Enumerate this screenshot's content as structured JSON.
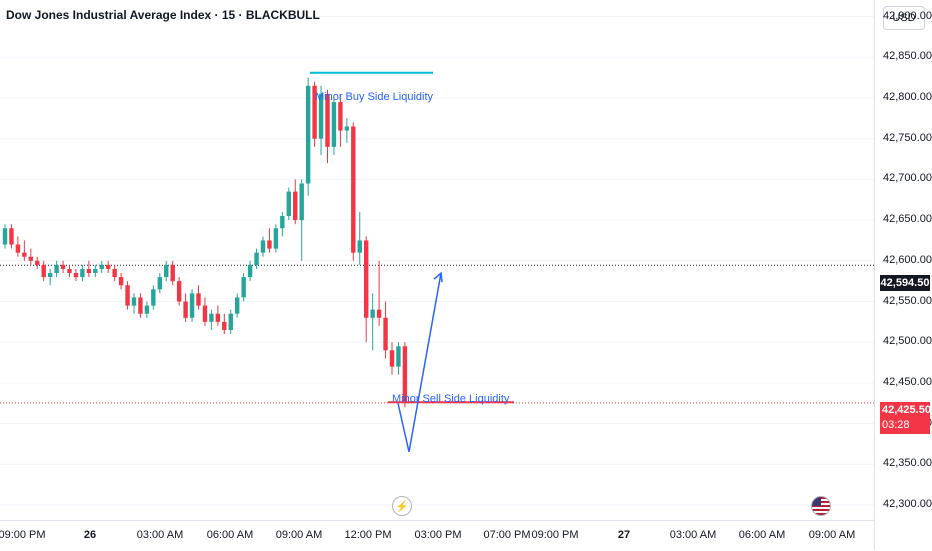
{
  "header": {
    "title": "Dow Jones Industrial Average Index · 15 · BLACKBULL"
  },
  "price_axis": {
    "currency": "USD",
    "ticks": [
      "42,900.00",
      "42,850.00",
      "42,800.00",
      "42,750.00",
      "42,700.00",
      "42,650.00",
      "42,600.00",
      "42,550.00",
      "42,500.00",
      "42,450.00",
      "42,400.00",
      "42,350.00",
      "42,300.00"
    ],
    "current_price_tag": "42,594.50",
    "last_price_tag": "42,425.50",
    "countdown": "03:28"
  },
  "time_axis": {
    "labels": [
      {
        "text": "09:00 PM",
        "bold": false
      },
      {
        "text": "26",
        "bold": true
      },
      {
        "text": "03:00 AM",
        "bold": false
      },
      {
        "text": "06:00 AM",
        "bold": false
      },
      {
        "text": "09:00 AM",
        "bold": false
      },
      {
        "text": "12:00 PM",
        "bold": false
      },
      {
        "text": "03:00 PM",
        "bold": false
      },
      {
        "text": "07:00 PM",
        "bold": false
      },
      {
        "text": "09:00 PM",
        "bold": false
      },
      {
        "text": "27",
        "bold": true
      },
      {
        "text": "03:00 AM",
        "bold": false
      },
      {
        "text": "06:00 AM",
        "bold": false
      },
      {
        "text": "09:00 AM",
        "bold": false
      }
    ]
  },
  "annotations": {
    "buy_side": "Minor Buy Side Liquidity",
    "sell_side": "Minor Sell Side Liquidity"
  },
  "icons": {
    "event_icon": "lightning-icon",
    "flag_icon": "us-flag-icon"
  },
  "colors": {
    "up": "#26a69a",
    "down": "#f23645",
    "accent": "#2962ff",
    "buy_line": "#00bcd4",
    "sell_line": "#f23645"
  },
  "chart_data": {
    "type": "candlestick",
    "title": "Dow Jones Industrial Average Index · 15 · BLACKBULL",
    "ylim": [
      42280,
      42930
    ],
    "current_price": 42594.5,
    "last_price": 42425.5,
    "buy_side_liquidity": 42820,
    "sell_side_liquidity": 42425,
    "projection": [
      [
        42425,
        42380
      ],
      [
        42380,
        42575
      ]
    ],
    "candles": [
      [
        42620,
        42645,
        42615,
        42640
      ],
      [
        42640,
        42645,
        42615,
        42620
      ],
      [
        42620,
        42630,
        42605,
        42610
      ],
      [
        42610,
        42625,
        42600,
        42605
      ],
      [
        42605,
        42615,
        42595,
        42600
      ],
      [
        42600,
        42605,
        42590,
        42595
      ],
      [
        42595,
        42600,
        42575,
        42580
      ],
      [
        42580,
        42590,
        42570,
        42585
      ],
      [
        42585,
        42600,
        42580,
        42595
      ],
      [
        42595,
        42600,
        42585,
        42590
      ],
      [
        42590,
        42595,
        42580,
        42585
      ],
      [
        42585,
        42590,
        42575,
        42580
      ],
      [
        42580,
        42595,
        42575,
        42590
      ],
      [
        42590,
        42600,
        42580,
        42585
      ],
      [
        42585,
        42595,
        42580,
        42590
      ],
      [
        42590,
        42600,
        42585,
        42595
      ],
      [
        42595,
        42600,
        42585,
        42590
      ],
      [
        42590,
        42595,
        42575,
        42580
      ],
      [
        42580,
        42585,
        42565,
        42570
      ],
      [
        42570,
        42575,
        42540,
        42545
      ],
      [
        42545,
        42560,
        42535,
        42555
      ],
      [
        42555,
        42560,
        42530,
        42535
      ],
      [
        42535,
        42550,
        42530,
        42545
      ],
      [
        42545,
        42570,
        42540,
        42565
      ],
      [
        42565,
        42585,
        42560,
        42580
      ],
      [
        42580,
        42600,
        42575,
        42595
      ],
      [
        42595,
        42600,
        42570,
        42575
      ],
      [
        42575,
        42580,
        42545,
        42550
      ],
      [
        42550,
        42560,
        42525,
        42530
      ],
      [
        42530,
        42565,
        42525,
        42560
      ],
      [
        42560,
        42570,
        42540,
        42545
      ],
      [
        42545,
        42555,
        42520,
        42525
      ],
      [
        42525,
        42540,
        42515,
        42535
      ],
      [
        42535,
        42545,
        42520,
        42525
      ],
      [
        42525,
        42535,
        42510,
        42515
      ],
      [
        42515,
        42540,
        42510,
        42535
      ],
      [
        42535,
        42560,
        42530,
        42555
      ],
      [
        42555,
        42585,
        42550,
        42580
      ],
      [
        42580,
        42600,
        42575,
        42595
      ],
      [
        42595,
        42615,
        42590,
        42610
      ],
      [
        42610,
        42630,
        42605,
        42625
      ],
      [
        42625,
        42640,
        42610,
        42615
      ],
      [
        42615,
        42645,
        42610,
        42640
      ],
      [
        42640,
        42660,
        42630,
        42655
      ],
      [
        42655,
        42690,
        42650,
        42685
      ],
      [
        42685,
        42700,
        42645,
        42650
      ],
      [
        42650,
        42700,
        42600,
        42695
      ],
      [
        42695,
        42825,
        42680,
        42815
      ],
      [
        42815,
        42820,
        42740,
        42750
      ],
      [
        42750,
        42815,
        42730,
        42805
      ],
      [
        42805,
        42810,
        42720,
        42740
      ],
      [
        42740,
        42800,
        42730,
        42795
      ],
      [
        42795,
        42805,
        42740,
        42760
      ],
      [
        42760,
        42775,
        42745,
        42765
      ],
      [
        42765,
        42770,
        42600,
        42610
      ],
      [
        42610,
        42660,
        42595,
        42625
      ],
      [
        42625,
        42630,
        42500,
        42530
      ],
      [
        42530,
        42560,
        42490,
        42540
      ],
      [
        42540,
        42600,
        42520,
        42530
      ],
      [
        42530,
        42550,
        42480,
        42490
      ],
      [
        42490,
        42500,
        42460,
        42470
      ],
      [
        42470,
        42500,
        42460,
        42495
      ],
      [
        42495,
        42500,
        42420,
        42425
      ]
    ]
  }
}
